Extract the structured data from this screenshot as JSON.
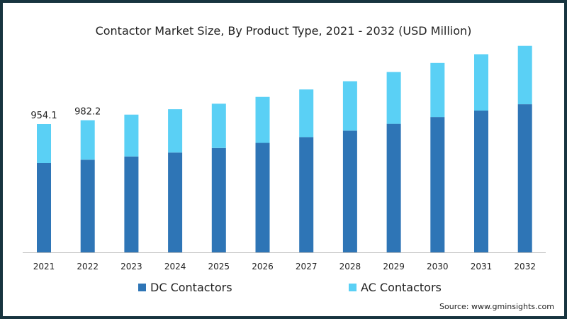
{
  "chart_data": {
    "type": "bar",
    "stacked": true,
    "title": "Contactor Market Size, By Product Type, 2021 - 2032 (USD Million)",
    "categories": [
      "2021",
      "2022",
      "2023",
      "2024",
      "2025",
      "2026",
      "2027",
      "2028",
      "2029",
      "2030",
      "2031",
      "2032"
    ],
    "series": [
      {
        "name": "DC Contactors",
        "color": "#2e75b6",
        "values": [
          664,
          689,
          713,
          742,
          776,
          814,
          857,
          905,
          956,
          1006,
          1054,
          1101
        ]
      },
      {
        "name": "AC Contactors",
        "color": "#5ad0f5",
        "values": [
          290.1,
          293.2,
          311,
          322,
          329,
          342,
          354,
          367,
          385,
          402,
          419,
          434
        ]
      }
    ],
    "data_labels": [
      {
        "category": "2021",
        "text": "954.1"
      },
      {
        "category": "2022",
        "text": "982.2"
      }
    ],
    "ylim": [
      0,
      1560
    ],
    "grid": false,
    "legend_position": "bottom"
  },
  "source_text": "Source: www.gminsights.com"
}
